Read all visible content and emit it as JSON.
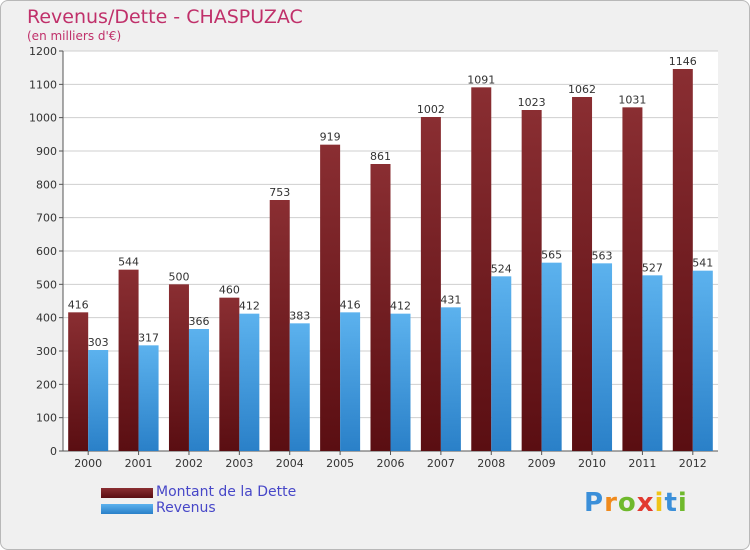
{
  "chart_data": {
    "type": "bar",
    "title": "Revenus/Dette - CHASPUZAC",
    "subtitle": "(en milliers d'€)",
    "categories": [
      "2000",
      "2001",
      "2002",
      "2003",
      "2004",
      "2005",
      "2006",
      "2007",
      "2008",
      "2009",
      "2010",
      "2011",
      "2012"
    ],
    "series": [
      {
        "name": "Montant de la Dette",
        "color": "#6e1a1e",
        "values": [
          416,
          544,
          500,
          460,
          753,
          919,
          861,
          1002,
          1091,
          1023,
          1062,
          1031,
          1146
        ]
      },
      {
        "name": "Revenus",
        "color": "#3d9ae0",
        "values": [
          303,
          317,
          366,
          412,
          383,
          416,
          412,
          431,
          524,
          565,
          563,
          527,
          541
        ]
      }
    ],
    "ylim": [
      0,
      1200
    ],
    "yticks": [
      0,
      100,
      200,
      300,
      400,
      500,
      600,
      700,
      800,
      900,
      1000,
      1100,
      1200
    ],
    "grid": true,
    "legend_position": "bottom-left"
  },
  "logo": {
    "letters": [
      "P",
      "r",
      "o",
      "x",
      "i",
      "t",
      "i"
    ],
    "colors": [
      "#3b8fd9",
      "#f08a1c",
      "#6fb92c",
      "#e23a30",
      "#f0c419",
      "#3b8fd9",
      "#6fb92c"
    ]
  }
}
